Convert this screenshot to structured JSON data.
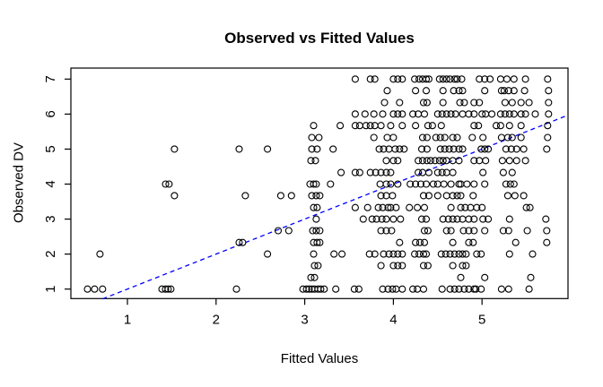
{
  "chart_data": {
    "type": "scatter",
    "title": "Observed vs Fitted Values",
    "xlabel": "Fitted Values",
    "ylabel": "Observed DV",
    "x_ticks": [
      1,
      2,
      3,
      4,
      5
    ],
    "y_ticks": [
      1,
      2,
      3,
      4,
      5,
      6,
      7
    ],
    "xlim": [
      0.36,
      5.97
    ],
    "ylim": [
      0.73,
      7.31
    ],
    "grid": false,
    "marker": {
      "shape": "circle-open",
      "radius": 3.5,
      "color": "#000000"
    },
    "identity_line": {
      "x": [
        0.72,
        5.94
      ],
      "y": [
        0.72,
        5.94
      ],
      "color": "#0000FF",
      "dashed": true
    },
    "rows": [
      {
        "y": 7,
        "x": [
          3.57,
          3.74,
          3.79,
          4.0,
          4.05,
          4.1,
          4.24,
          4.29,
          4.33,
          4.37,
          4.4,
          4.52,
          4.56,
          4.6,
          4.64,
          4.69,
          4.72,
          4.77,
          4.97,
          5.03,
          5.09,
          5.21,
          5.28,
          5.36,
          5.49,
          5.74
        ]
      },
      {
        "y": 6.67,
        "x": [
          3.93,
          4.25,
          4.37,
          4.56,
          4.68,
          4.74,
          4.78,
          5.03,
          5.22,
          5.25,
          5.3,
          5.36,
          5.48,
          5.75
        ]
      },
      {
        "y": 6.33,
        "x": [
          3.9,
          4.07,
          4.34,
          4.38,
          4.56,
          4.75,
          4.8,
          4.91,
          4.97,
          5.26,
          5.34,
          5.44,
          5.53,
          5.75
        ]
      },
      {
        "y": 6,
        "x": [
          3.57,
          3.68,
          3.78,
          3.88,
          4.0,
          4.05,
          4.1,
          4.22,
          4.28,
          4.35,
          4.5,
          4.55,
          4.6,
          4.65,
          4.7,
          4.78,
          4.85,
          4.91,
          5.0,
          5.04,
          5.11,
          5.21,
          5.26,
          5.31,
          5.36,
          5.44,
          5.49,
          5.6,
          5.75
        ]
      },
      {
        "y": 5.67,
        "x": [
          3.1,
          3.4,
          3.57,
          3.62,
          3.69,
          3.74,
          3.79,
          3.86,
          3.97,
          4.1,
          4.25,
          4.39,
          4.44,
          4.54,
          4.91,
          4.96,
          5.16,
          5.21,
          5.31,
          5.44,
          5.74
        ]
      },
      {
        "y": 5.33,
        "x": [
          3.08,
          3.16,
          3.78,
          3.93,
          4.0,
          4.33,
          4.38,
          4.48,
          4.53,
          4.58,
          4.67,
          4.72,
          4.89,
          5.01,
          5.22,
          5.29,
          5.34,
          5.44,
          5.74
        ]
      },
      {
        "y": 5,
        "x": [
          1.53,
          2.26,
          2.58,
          3.08,
          3.14,
          3.32,
          3.84,
          3.89,
          3.95,
          4.02,
          4.07,
          4.12,
          4.32,
          4.38,
          4.53,
          4.58,
          4.63,
          4.68,
          4.74,
          4.78,
          4.99,
          5.03,
          5.07,
          5.27,
          5.33,
          5.39,
          5.47,
          5.73
        ]
      },
      {
        "y": 4.67,
        "x": [
          3.07,
          3.12,
          3.92,
          4.0,
          4.05,
          4.28,
          4.33,
          4.38,
          4.42,
          4.47,
          4.52,
          4.56,
          4.6,
          4.67,
          4.74,
          4.91,
          4.97,
          5.04,
          5.23,
          5.31,
          5.39,
          5.49
        ]
      },
      {
        "y": 4.33,
        "x": [
          3.41,
          3.57,
          3.62,
          3.74,
          3.8,
          3.86,
          3.92,
          3.97,
          4.28,
          4.33,
          4.4,
          4.5,
          4.55,
          4.6,
          4.67,
          5.01,
          5.24,
          5.34
        ]
      },
      {
        "y": 4,
        "x": [
          1.43,
          1.47,
          3.06,
          3.1,
          3.13,
          3.29,
          3.85,
          3.92,
          3.97,
          4.05,
          4.19,
          4.25,
          4.31,
          4.37,
          4.45,
          4.5,
          4.57,
          4.65,
          4.74,
          4.76,
          4.83,
          4.91,
          5.03,
          5.27,
          5.32,
          5.36
        ]
      },
      {
        "y": 3.67,
        "x": [
          1.53,
          2.33,
          2.73,
          2.85,
          3.08,
          3.13,
          3.17,
          3.86,
          3.92,
          3.99,
          4.34,
          4.4,
          4.5,
          4.6,
          4.67,
          4.72,
          4.76,
          4.9,
          5.29,
          5.37,
          5.47
        ]
      },
      {
        "y": 3.33,
        "x": [
          3.1,
          3.14,
          3.57,
          3.71,
          3.83,
          3.88,
          3.94,
          3.97,
          4.03,
          4.18,
          4.27,
          4.35,
          4.65,
          4.76,
          4.81,
          4.87,
          4.94,
          5.0,
          5.5,
          5.54
        ]
      },
      {
        "y": 3,
        "x": [
          3.13,
          3.66,
          3.76,
          3.81,
          3.87,
          3.92,
          4.0,
          4.08,
          4.32,
          4.37,
          4.56,
          4.62,
          4.67,
          4.72,
          4.78,
          4.85,
          4.91,
          5.01,
          5.07,
          5.31,
          5.72
        ]
      },
      {
        "y": 2.67,
        "x": [
          2.7,
          2.82,
          3.09,
          3.13,
          3.17,
          3.86,
          3.92,
          3.98,
          4.35,
          4.39,
          4.6,
          4.65,
          4.79,
          4.85,
          4.91,
          5.03,
          5.24,
          5.3,
          5.51,
          5.73
        ]
      },
      {
        "y": 2.33,
        "x": [
          2.26,
          2.3,
          3.1,
          3.14,
          3.17,
          4.07,
          4.25,
          4.3,
          4.35,
          4.67,
          4.85,
          4.9,
          5.38,
          5.73
        ]
      },
      {
        "y": 2,
        "x": [
          0.69,
          2.58,
          3.1,
          3.33,
          3.42,
          3.73,
          3.79,
          3.89,
          3.95,
          4.0,
          4.05,
          4.1,
          4.24,
          4.29,
          4.34,
          4.37,
          4.54,
          4.59,
          4.64,
          4.69,
          4.74,
          4.78,
          4.82,
          4.94,
          4.99,
          5.31,
          5.57
        ]
      },
      {
        "y": 1.67,
        "x": [
          3.11,
          3.15,
          3.86,
          4.0,
          4.05,
          4.1,
          4.34,
          4.39,
          4.67,
          4.78,
          4.82
        ]
      },
      {
        "y": 1.33,
        "x": [
          3.07,
          3.11,
          4.76,
          5.03,
          5.55
        ]
      },
      {
        "y": 1,
        "x": [
          0.55,
          0.63,
          0.72,
          1.39,
          1.43,
          1.46,
          1.49,
          2.23,
          2.98,
          3.02,
          3.05,
          3.08,
          3.11,
          3.15,
          3.18,
          3.22,
          3.35,
          3.56,
          3.61,
          3.88,
          3.94,
          3.99,
          4.03,
          4.1,
          4.22,
          4.27,
          4.34,
          4.55,
          4.64,
          4.69,
          4.74,
          4.8,
          4.85,
          4.91,
          4.93,
          4.99,
          5.22,
          5.3,
          5.53
        ]
      }
    ]
  }
}
